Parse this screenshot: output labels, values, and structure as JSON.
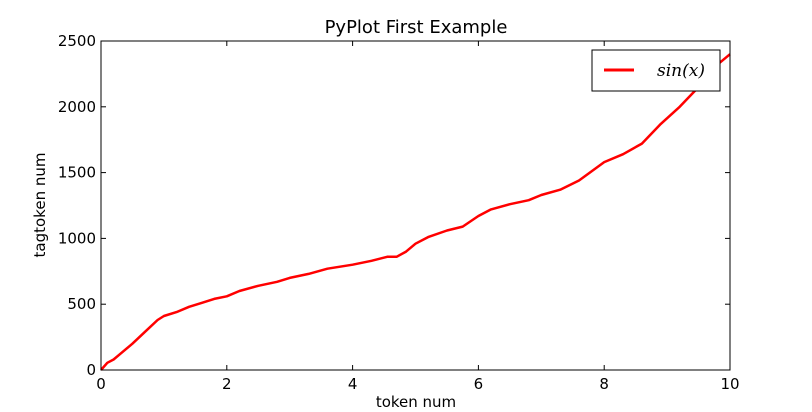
{
  "chart_data": {
    "type": "line",
    "title": "PyPlot First Example",
    "xlabel": "token num",
    "ylabel": "tagtoken num",
    "xlim": [
      0,
      10
    ],
    "ylim": [
      0,
      2500
    ],
    "x_ticks": [
      0,
      2,
      4,
      6,
      8,
      10
    ],
    "x_tick_labels": [
      "0",
      "2",
      "4",
      "6",
      "8",
      "10"
    ],
    "y_ticks": [
      0,
      500,
      1000,
      1500,
      2000,
      2500
    ],
    "y_tick_labels": [
      "0",
      "500",
      "1000",
      "1500",
      "2000",
      "2500"
    ],
    "grid": false,
    "legend_position": "upper right",
    "series": [
      {
        "name": "sin(x)",
        "legend_label": "sin(x)",
        "color": "#ff0000",
        "x": [
          0,
          0.1,
          0.2,
          0.3,
          0.5,
          0.7,
          0.9,
          1.0,
          1.2,
          1.4,
          1.6,
          1.8,
          2.0,
          2.2,
          2.5,
          2.8,
          3.0,
          3.3,
          3.6,
          4.0,
          4.3,
          4.55,
          4.7,
          4.85,
          5.0,
          5.2,
          5.5,
          5.75,
          6.0,
          6.2,
          6.5,
          6.8,
          7.0,
          7.3,
          7.6,
          8.0,
          8.3,
          8.6,
          8.9,
          9.2,
          9.5,
          9.8,
          10.0
        ],
        "y": [
          0,
          55,
          80,
          120,
          200,
          290,
          380,
          410,
          440,
          480,
          510,
          540,
          560,
          600,
          640,
          670,
          700,
          730,
          770,
          800,
          830,
          860,
          860,
          900,
          960,
          1010,
          1060,
          1090,
          1170,
          1220,
          1260,
          1290,
          1330,
          1370,
          1440,
          1580,
          1640,
          1720,
          1870,
          2000,
          2150,
          2320,
          2400
        ]
      }
    ]
  }
}
